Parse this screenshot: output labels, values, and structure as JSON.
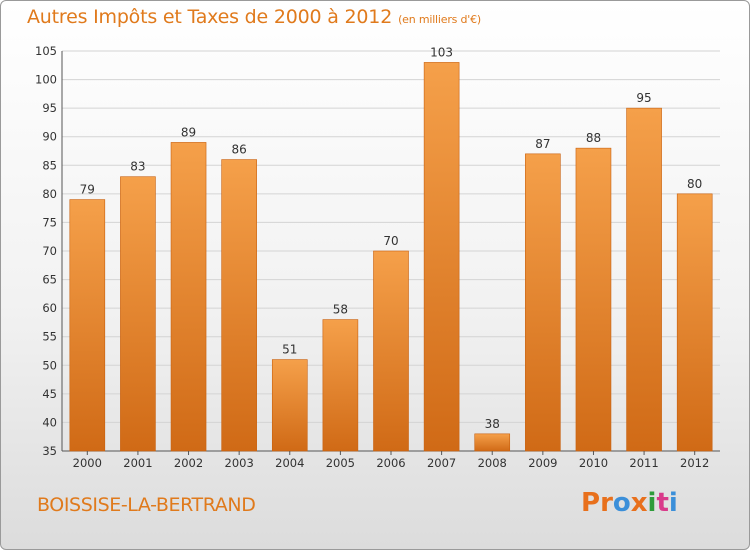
{
  "header": {
    "title": "Autres Impôts et Taxes de 2000 à 2012",
    "unit": "(en milliers d'€)"
  },
  "footer": {
    "place": "BOISSISE-LA-BERTRAND",
    "brand": "Proxiti",
    "brand_colors": [
      "#e8701c",
      "#e8701c",
      "#3b8fd9",
      "#e8701c",
      "#2e9c3a",
      "#d93a8a",
      "#3b8fd9"
    ]
  },
  "colors": {
    "accent": "#e07a1c",
    "bar_top": "#f5a04a",
    "bar_bottom": "#d06a16",
    "grid": "#d4d4d4"
  },
  "chart_data": {
    "type": "bar",
    "title": "Autres Impôts et Taxes de 2000 à 2012",
    "subtitle": "(en milliers d'€)",
    "categories": [
      "2000",
      "2001",
      "2002",
      "2003",
      "2004",
      "2005",
      "2006",
      "2007",
      "2008",
      "2009",
      "2010",
      "2011",
      "2012"
    ],
    "values": [
      79,
      83,
      89,
      86,
      51,
      58,
      70,
      103,
      38,
      87,
      88,
      95,
      80
    ],
    "ylim": [
      35,
      105
    ],
    "yticks": [
      35,
      40,
      45,
      50,
      55,
      60,
      65,
      70,
      75,
      80,
      85,
      90,
      95,
      100,
      105
    ],
    "grid": true,
    "xlabel": "",
    "ylabel": ""
  }
}
